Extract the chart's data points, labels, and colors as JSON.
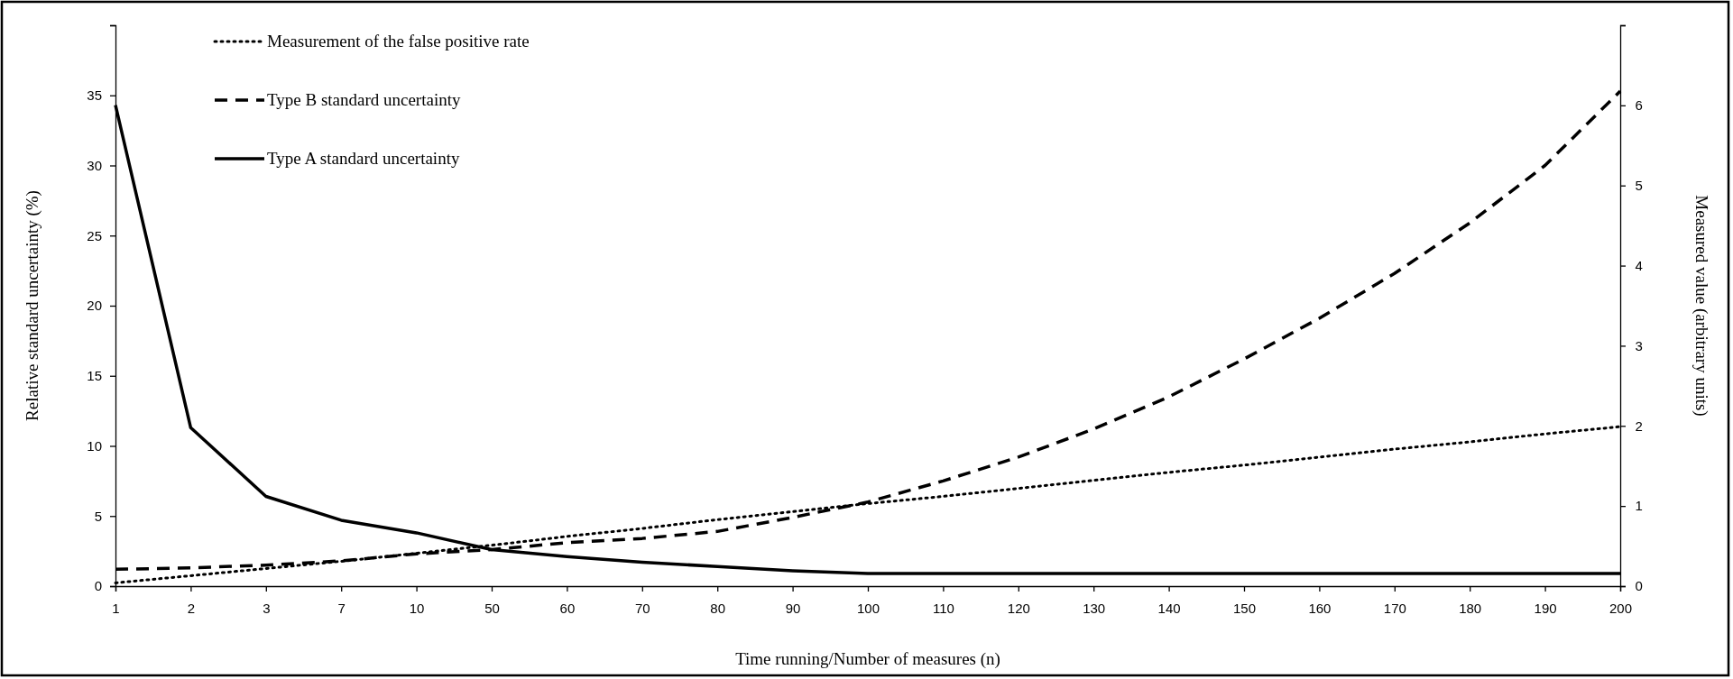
{
  "chart_data": {
    "type": "line",
    "xlabel": "Time running/Number  of measures (n)",
    "ylabel": "Relative  standard uncertainty  (%)",
    "y2label": "Measured value  (arbitrary  units)",
    "categories": [
      "1",
      "2",
      "3",
      "7",
      "10",
      "50",
      "60",
      "70",
      "80",
      "90",
      "100",
      "110",
      "120",
      "130",
      "140",
      "150",
      "160",
      "170",
      "180",
      "190",
      "200"
    ],
    "ylim": [
      0,
      40
    ],
    "yticks": [
      0,
      5,
      10,
      15,
      20,
      25,
      30,
      35,
      {
        "value": 40,
        "label": null
      }
    ],
    "y2lim": [
      0,
      7
    ],
    "y2ticks": [
      0,
      1,
      2,
      3,
      4,
      5,
      6,
      {
        "value": 7,
        "label": null
      }
    ],
    "grid": false,
    "legend": "top left",
    "marker": "none",
    "series": [
      {
        "name": "Measurement of the false positive rate",
        "color": "#000000",
        "axis": "y2",
        "line_style": "dotted",
        "values": [
          0.04,
          0.13,
          0.22,
          0.31,
          0.41,
          0.51,
          0.62,
          0.72,
          0.83,
          0.93,
          1.03,
          1.12,
          1.22,
          1.32,
          1.42,
          1.51,
          1.61,
          1.71,
          1.8,
          1.9,
          1.99
        ]
      },
      {
        "name": "Type B standard uncertainty",
        "color": "#000000",
        "axis": "y",
        "line_style": "dashed",
        "values": [
          1.2,
          1.3,
          1.5,
          1.8,
          2.3,
          2.6,
          3.1,
          3.4,
          3.9,
          4.9,
          6.0,
          7.5,
          9.2,
          11.2,
          13.5,
          16.2,
          19.1,
          22.3,
          25.9,
          30.0,
          35.3
        ]
      },
      {
        "name": "Type A standard uncertainty",
        "color": "#000000",
        "axis": "y",
        "line_style": "solid",
        "values": [
          34.3,
          11.3,
          6.4,
          4.7,
          3.8,
          2.6,
          2.1,
          1.7,
          1.4,
          1.1,
          0.9,
          0.9,
          0.9,
          0.9,
          0.9,
          0.9,
          0.9,
          0.9,
          0.9,
          0.9,
          0.9
        ]
      }
    ]
  }
}
